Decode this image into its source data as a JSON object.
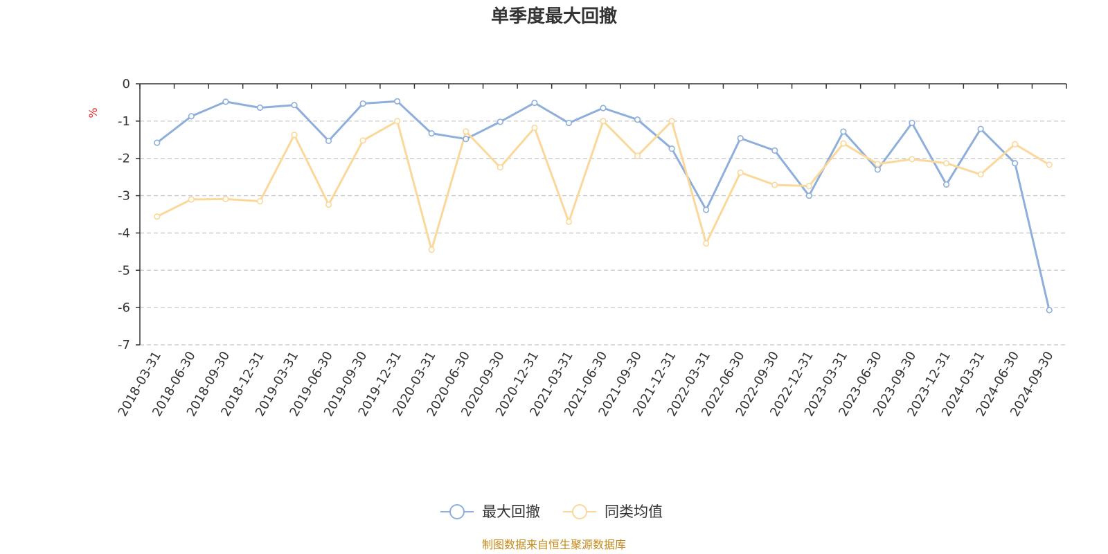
{
  "chart_data": {
    "type": "line",
    "title": "单季度最大回撤",
    "ylabel": "%",
    "ylim": [
      -7,
      0
    ],
    "yticks": [
      "0",
      "-1",
      "-2",
      "-3",
      "-4",
      "-5",
      "-6",
      "-7"
    ],
    "grid": true,
    "legend_position": "bottom",
    "categories": [
      "2018-03-31",
      "2018-06-30",
      "2018-09-30",
      "2018-12-31",
      "2019-03-31",
      "2019-06-30",
      "2019-09-30",
      "2019-12-31",
      "2020-03-31",
      "2020-06-30",
      "2020-09-30",
      "2020-12-31",
      "2021-03-31",
      "2021-06-30",
      "2021-09-30",
      "2021-12-31",
      "2022-03-31",
      "2022-06-30",
      "2022-09-30",
      "2022-12-31",
      "2023-03-31",
      "2023-06-30",
      "2023-09-30",
      "2023-12-31",
      "2024-03-31",
      "2024-06-30",
      "2024-09-30"
    ],
    "series": [
      {
        "name": "最大回撤",
        "color": "#8eaedb",
        "values": [
          -1.58,
          -0.87,
          -0.48,
          -0.64,
          -0.57,
          -1.53,
          -0.53,
          -0.47,
          -1.33,
          -1.48,
          -1.02,
          -0.51,
          -1.05,
          -0.65,
          -0.96,
          -1.74,
          -3.38,
          -1.46,
          -1.79,
          -3.0,
          -1.28,
          -2.3,
          -1.05,
          -2.7,
          -1.21,
          -2.13,
          -6.07
        ]
      },
      {
        "name": "同类均值",
        "color": "#fbd89a",
        "values": [
          -3.56,
          -3.1,
          -3.09,
          -3.15,
          -1.37,
          -3.24,
          -1.52,
          -1.0,
          -4.45,
          -1.28,
          -2.24,
          -1.18,
          -3.7,
          -1.0,
          -1.93,
          -1.0,
          -4.28,
          -2.38,
          -2.71,
          -2.74,
          -1.6,
          -2.15,
          -2.02,
          -2.13,
          -2.43,
          -1.62,
          -2.17
        ]
      }
    ],
    "source": "制图数据来自恒生聚源数据库"
  }
}
